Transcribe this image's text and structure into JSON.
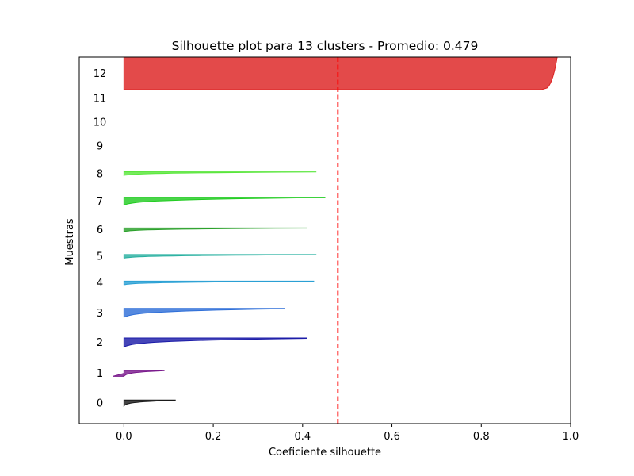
{
  "chart_data": {
    "type": "area",
    "title": "Silhouette plot para 13 clusters - Promedio: 0.479",
    "xlabel": "Coeficiente silhouette",
    "ylabel": "Muestras",
    "xlim": [
      -0.1,
      1.0
    ],
    "ylim": [
      0,
      62
    ],
    "grid": false,
    "legend": "none",
    "x_ticks": [
      "0.0",
      "0.2",
      "0.4",
      "0.6",
      "0.8",
      "1.0"
    ],
    "x_tick_values": [
      0.0,
      0.2,
      0.4,
      0.6,
      0.8,
      1.0
    ],
    "average_line": {
      "value": 0.479,
      "color": "#ff0000",
      "style": "dashed"
    },
    "clusters": [
      {
        "label": "0",
        "y_start": 3,
        "size": 1,
        "max": 0.115,
        "min": 0.0,
        "color": "#1a1a1a"
      },
      {
        "label": "1",
        "y_start": 8,
        "size": 1,
        "max": 0.09,
        "min": -0.025,
        "color": "#7a1a8c"
      },
      {
        "label": "2",
        "y_start": 13,
        "size": 1.5,
        "max": 0.41,
        "min": 0.0,
        "color": "#1c1ca8"
      },
      {
        "label": "3",
        "y_start": 18,
        "size": 1.5,
        "max": 0.36,
        "min": 0.0,
        "color": "#2f6fd8"
      },
      {
        "label": "4",
        "y_start": 23.5,
        "size": 0.6,
        "max": 0.425,
        "min": 0.0,
        "color": "#2aa0d4"
      },
      {
        "label": "5",
        "y_start": 28,
        "size": 0.6,
        "max": 0.43,
        "min": 0.0,
        "color": "#28b0a0"
      },
      {
        "label": "6",
        "y_start": 32.5,
        "size": 0.6,
        "max": 0.41,
        "min": 0.0,
        "color": "#2aa02a"
      },
      {
        "label": "7",
        "y_start": 37,
        "size": 1.3,
        "max": 0.45,
        "min": 0.0,
        "color": "#22cc22"
      },
      {
        "label": "8",
        "y_start": 42,
        "size": 0.6,
        "max": 0.43,
        "min": 0.0,
        "color": "#5ae63c"
      },
      {
        "label": "9",
        "y_start": 47,
        "size": 0,
        "max": 0,
        "min": 0,
        "color": "#88dd44"
      },
      {
        "label": "10",
        "y_start": 51,
        "size": 0,
        "max": 0,
        "min": 0,
        "color": "#bbcc33"
      },
      {
        "label": "11",
        "y_start": 55,
        "size": 0,
        "max": 0,
        "min": 0,
        "color": "#dd8822"
      },
      {
        "label": "12",
        "y_start": 56.5,
        "size": 5.5,
        "max": 0.97,
        "min": 0.935,
        "color": "#dd2222"
      }
    ]
  }
}
